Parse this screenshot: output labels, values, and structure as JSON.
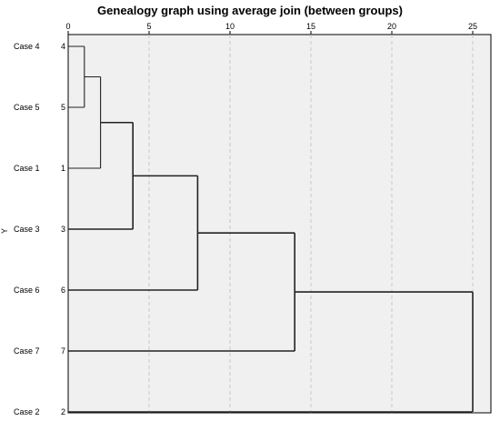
{
  "chart_data": {
    "type": "dendrogram",
    "title": "Genealogy graph using average join (between groups)",
    "ylabel": "Y",
    "x_ticks": [
      0,
      5,
      10,
      15,
      20,
      25
    ],
    "xlim": [
      0,
      25
    ],
    "grid": true,
    "leaves": [
      {
        "label": "Case 4",
        "id": "4"
      },
      {
        "label": "Case 5",
        "id": "5"
      },
      {
        "label": "Case 1",
        "id": "1"
      },
      {
        "label": "Case 3",
        "id": "3"
      },
      {
        "label": "Case 6",
        "id": "6"
      },
      {
        "label": "Case 7",
        "id": "7"
      },
      {
        "label": "Case 2",
        "id": "2"
      }
    ],
    "merges": [
      {
        "children": [
          0,
          1
        ],
        "distance": 1
      },
      {
        "children": [
          7,
          2
        ],
        "distance": 2
      },
      {
        "children": [
          8,
          3
        ],
        "distance": 4
      },
      {
        "children": [
          9,
          4
        ],
        "distance": 8
      },
      {
        "children": [
          10,
          5
        ],
        "distance": 14
      },
      {
        "children": [
          11,
          6
        ],
        "distance": 25
      }
    ]
  }
}
